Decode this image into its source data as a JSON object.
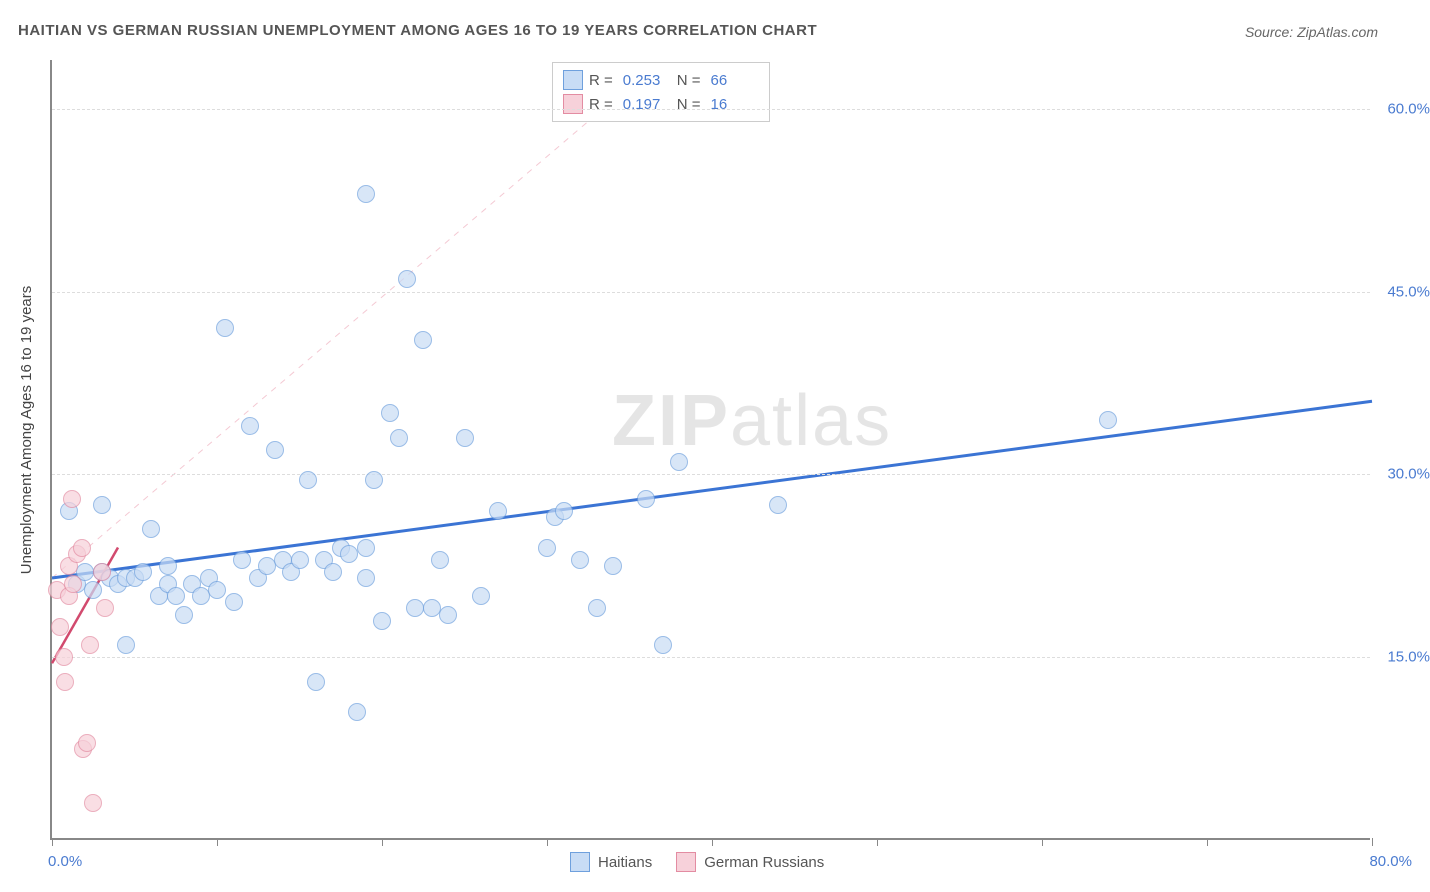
{
  "title": "HAITIAN VS GERMAN RUSSIAN UNEMPLOYMENT AMONG AGES 16 TO 19 YEARS CORRELATION CHART",
  "source": "Source: ZipAtlas.com",
  "y_axis_label": "Unemployment Among Ages 16 to 19 years",
  "watermark_bold": "ZIP",
  "watermark_light": "atlas",
  "chart": {
    "type": "scatter",
    "xlim": [
      0,
      80
    ],
    "ylim": [
      0,
      64
    ],
    "x_ticks": [
      0,
      10,
      20,
      30,
      40,
      50,
      60,
      70,
      80
    ],
    "x_tick_labels_visible": {
      "0": "0.0%",
      "80": "80.0%"
    },
    "y_gridlines": [
      15,
      30,
      45,
      60
    ],
    "y_tick_labels": [
      "15.0%",
      "30.0%",
      "45.0%",
      "60.0%"
    ],
    "background_color": "#ffffff",
    "grid_color": "#dddddd",
    "point_radius": 9,
    "series": [
      {
        "name": "Haitians",
        "fill": "#c8dcf5",
        "stroke": "#6fa0dd",
        "fill_opacity": 0.7,
        "trend": {
          "x1": 0,
          "y1": 21.5,
          "x2": 80,
          "y2": 36,
          "stroke": "#3b74d4",
          "width": 3,
          "dash": "none"
        },
        "trend_ext": {
          "x1": 0,
          "y1": 21.5,
          "x2": 36,
          "y2": 63,
          "stroke": "#f4c9d3",
          "width": 1,
          "dash": "6,6"
        },
        "points": [
          [
            1,
            27
          ],
          [
            1.5,
            21
          ],
          [
            2,
            22
          ],
          [
            2.5,
            20.5
          ],
          [
            3,
            27.5
          ],
          [
            3,
            22
          ],
          [
            3.5,
            21.5
          ],
          [
            4,
            21
          ],
          [
            4.5,
            21.5
          ],
          [
            4.5,
            16
          ],
          [
            5,
            21.5
          ],
          [
            5.5,
            22
          ],
          [
            6,
            25.5
          ],
          [
            6.5,
            20
          ],
          [
            7,
            22.5
          ],
          [
            7,
            21
          ],
          [
            7.5,
            20
          ],
          [
            8,
            18.5
          ],
          [
            8.5,
            21
          ],
          [
            9,
            20
          ],
          [
            9.5,
            21.5
          ],
          [
            10,
            20.5
          ],
          [
            10.5,
            42
          ],
          [
            11,
            19.5
          ],
          [
            11.5,
            23
          ],
          [
            12,
            34
          ],
          [
            12.5,
            21.5
          ],
          [
            13,
            22.5
          ],
          [
            13.5,
            32
          ],
          [
            14,
            23
          ],
          [
            14.5,
            22
          ],
          [
            15,
            23
          ],
          [
            15.5,
            29.5
          ],
          [
            16,
            13
          ],
          [
            16.5,
            23
          ],
          [
            17,
            22
          ],
          [
            17.5,
            24
          ],
          [
            18,
            23.5
          ],
          [
            19,
            53
          ],
          [
            19,
            21.5
          ],
          [
            19.5,
            29.5
          ],
          [
            20,
            18
          ],
          [
            20.5,
            35
          ],
          [
            21,
            33
          ],
          [
            21.5,
            46
          ],
          [
            22,
            19
          ],
          [
            22.5,
            41
          ],
          [
            23,
            19
          ],
          [
            23.5,
            23
          ],
          [
            24,
            18.5
          ],
          [
            25,
            33
          ],
          [
            26,
            20
          ],
          [
            27,
            27
          ],
          [
            30,
            24
          ],
          [
            30.5,
            26.5
          ],
          [
            31,
            27
          ],
          [
            32,
            23
          ],
          [
            33,
            19
          ],
          [
            34,
            22.5
          ],
          [
            36,
            28
          ],
          [
            37,
            16
          ],
          [
            38,
            31
          ],
          [
            44,
            27.5
          ],
          [
            64,
            34.5
          ],
          [
            18.5,
            10.5
          ],
          [
            19,
            24
          ]
        ]
      },
      {
        "name": "German Russians",
        "fill": "#f7d1da",
        "stroke": "#e38ca2",
        "fill_opacity": 0.7,
        "trend": {
          "x1": 0,
          "y1": 14.5,
          "x2": 4,
          "y2": 24,
          "stroke": "#d24a6e",
          "width": 2.5,
          "dash": "none"
        },
        "points": [
          [
            0.3,
            20.5
          ],
          [
            0.5,
            17.5
          ],
          [
            0.7,
            15
          ],
          [
            0.8,
            13
          ],
          [
            1,
            22.5
          ],
          [
            1,
            20
          ],
          [
            1.2,
            28
          ],
          [
            1.3,
            21
          ],
          [
            1.5,
            23.5
          ],
          [
            1.8,
            24
          ],
          [
            1.9,
            7.5
          ],
          [
            2.1,
            8
          ],
          [
            2.3,
            16
          ],
          [
            2.5,
            3
          ],
          [
            3,
            22
          ],
          [
            3.2,
            19
          ]
        ]
      }
    ]
  },
  "legend_top": {
    "rows": [
      {
        "swatch_fill": "#c8dcf5",
        "swatch_stroke": "#6fa0dd",
        "r_label": "R =",
        "r_val": "0.253",
        "n_label": "N =",
        "n_val": "66"
      },
      {
        "swatch_fill": "#f7d1da",
        "swatch_stroke": "#e38ca2",
        "r_label": "R =",
        "r_val": "0.197",
        "n_label": "N =",
        "n_val": "16"
      }
    ]
  },
  "legend_bottom": {
    "items": [
      {
        "swatch_fill": "#c8dcf5",
        "swatch_stroke": "#6fa0dd",
        "label": "Haitians"
      },
      {
        "swatch_fill": "#f7d1da",
        "swatch_stroke": "#e38ca2",
        "label": "German Russians"
      }
    ]
  }
}
